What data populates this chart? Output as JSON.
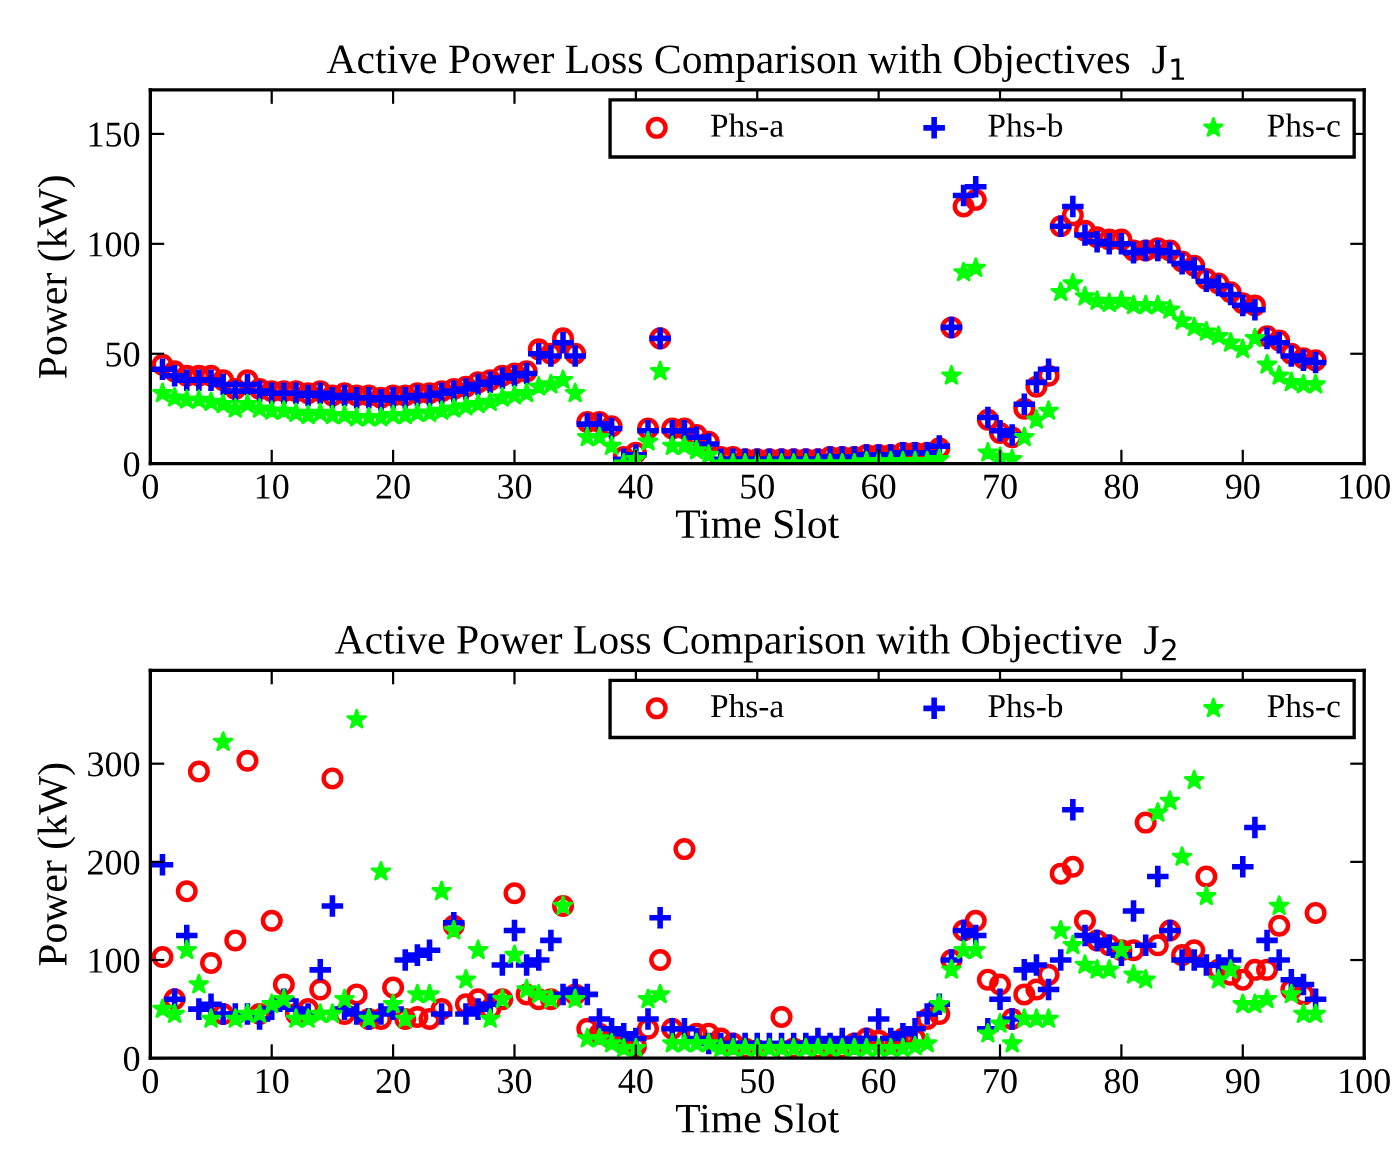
{
  "chart_data": [
    {
      "type": "scatter",
      "title": "Active Power Loss Comparison with Objectives  J$_{1}$",
      "xlabel": "Time Slot",
      "ylabel": "Power (kW)",
      "x": [
        1,
        2,
        3,
        4,
        5,
        6,
        7,
        8,
        9,
        10,
        11,
        12,
        13,
        14,
        15,
        16,
        17,
        18,
        19,
        20,
        21,
        22,
        23,
        24,
        25,
        26,
        27,
        28,
        29,
        30,
        31,
        32,
        33,
        34,
        35,
        36,
        37,
        38,
        39,
        40,
        41,
        42,
        43,
        44,
        45,
        46,
        47,
        48,
        49,
        50,
        51,
        52,
        53,
        54,
        55,
        56,
        57,
        58,
        59,
        60,
        61,
        62,
        63,
        64,
        65,
        66,
        67,
        68,
        69,
        70,
        71,
        72,
        73,
        74,
        75,
        76,
        77,
        78,
        79,
        80,
        81,
        82,
        83,
        84,
        85,
        86,
        87,
        88,
        89,
        90,
        91,
        92,
        93,
        94,
        95,
        96
      ],
      "series": [
        {
          "name": "Phs-a",
          "color": "#ff0000",
          "marker": "circle",
          "values": [
            45,
            42,
            40,
            40,
            40,
            38,
            34,
            38,
            34,
            33,
            33,
            33,
            32,
            33,
            31,
            32,
            31,
            31,
            30,
            31,
            31,
            32,
            32,
            33,
            34,
            35,
            37,
            38,
            40,
            41,
            42,
            52,
            50,
            57,
            50,
            19,
            19,
            17,
            3,
            5,
            16,
            57,
            16,
            16,
            13,
            10,
            3,
            3,
            2,
            2,
            2,
            2,
            2,
            2,
            2,
            3,
            3,
            3,
            4,
            4,
            4,
            5,
            5,
            5,
            7,
            62,
            117,
            120,
            20,
            14,
            12,
            25,
            35,
            40,
            108,
            113,
            106,
            103,
            102,
            102,
            97,
            97,
            98,
            97,
            92,
            90,
            84,
            82,
            78,
            73,
            72,
            58,
            56,
            50,
            48,
            47
          ]
        },
        {
          "name": "Phs-b",
          "color": "#0000ff",
          "marker": "cross",
          "values": [
            43,
            40,
            38,
            38,
            38,
            36,
            33,
            36,
            33,
            32,
            32,
            32,
            31,
            32,
            30,
            31,
            30,
            30,
            29,
            30,
            30,
            31,
            31,
            32,
            33,
            34,
            36,
            37,
            39,
            40,
            41,
            50,
            49,
            55,
            49,
            18,
            18,
            16,
            2,
            4,
            15,
            57,
            15,
            15,
            12,
            9,
            2,
            2,
            2,
            2,
            2,
            2,
            2,
            2,
            2,
            3,
            3,
            3,
            4,
            4,
            4,
            5,
            5,
            5,
            8,
            62,
            122,
            126,
            21,
            15,
            13,
            27,
            37,
            43,
            108,
            117,
            104,
            101,
            100,
            100,
            96,
            97,
            97,
            96,
            91,
            89,
            83,
            81,
            77,
            72,
            70,
            57,
            55,
            49,
            47,
            46
          ]
        },
        {
          "name": "Phs-c",
          "color": "#00ff00",
          "marker": "star",
          "values": [
            32,
            30,
            29,
            29,
            28,
            27,
            25,
            27,
            25,
            24,
            24,
            23,
            22,
            23,
            22,
            22,
            21,
            21,
            21,
            22,
            22,
            23,
            23,
            24,
            25,
            26,
            27,
            28,
            30,
            31,
            32,
            35,
            36,
            38,
            32,
            12,
            12,
            8,
            0,
            2,
            10,
            42,
            8,
            8,
            6,
            4,
            0,
            0,
            0,
            0,
            0,
            0,
            0,
            0,
            0,
            0,
            0,
            0,
            1,
            1,
            1,
            1,
            1,
            1,
            2,
            40,
            87,
            89,
            5,
            3,
            2,
            12,
            20,
            24,
            78,
            82,
            76,
            74,
            73,
            74,
            72,
            72,
            72,
            70,
            65,
            62,
            60,
            58,
            55,
            52,
            57,
            45,
            40,
            37,
            36,
            36
          ]
        }
      ],
      "xlim": [
        0,
        100
      ],
      "xticks": [
        0,
        10,
        20,
        30,
        40,
        50,
        60,
        70,
        80,
        90,
        100
      ],
      "ylim": [
        0,
        170
      ],
      "yticks": [
        0,
        50,
        100,
        150
      ],
      "legend": "top right",
      "grid": false
    },
    {
      "type": "scatter",
      "title": "Active Power Loss Comparison with Objective  J$_{2}$",
      "xlabel": "Time Slot",
      "ylabel": "Power (kW)",
      "x": [
        1,
        2,
        3,
        4,
        5,
        6,
        7,
        8,
        9,
        10,
        11,
        12,
        13,
        14,
        15,
        16,
        17,
        18,
        19,
        20,
        21,
        22,
        23,
        24,
        25,
        26,
        27,
        28,
        29,
        30,
        31,
        32,
        33,
        34,
        35,
        36,
        37,
        38,
        39,
        40,
        41,
        42,
        43,
        44,
        45,
        46,
        47,
        48,
        49,
        50,
        51,
        52,
        53,
        54,
        55,
        56,
        57,
        58,
        59,
        60,
        61,
        62,
        63,
        64,
        65,
        66,
        67,
        68,
        69,
        70,
        71,
        72,
        73,
        74,
        75,
        76,
        77,
        78,
        79,
        80,
        81,
        82,
        83,
        84,
        85,
        86,
        87,
        88,
        89,
        90,
        91,
        92,
        93,
        94,
        95,
        96
      ],
      "series": [
        {
          "name": "Phs-a",
          "color": "#ff0000",
          "marker": "circle",
          "values": [
            103,
            60,
            170,
            292,
            97,
            45,
            120,
            303,
            45,
            140,
            75,
            45,
            50,
            70,
            285,
            45,
            65,
            40,
            40,
            72,
            40,
            42,
            40,
            50,
            135,
            55,
            60,
            50,
            60,
            168,
            65,
            60,
            60,
            155,
            65,
            30,
            25,
            20,
            15,
            12,
            30,
            100,
            30,
            213,
            25,
            25,
            20,
            15,
            10,
            8,
            5,
            42,
            10,
            8,
            10,
            12,
            10,
            15,
            20,
            18,
            15,
            20,
            20,
            40,
            45,
            100,
            130,
            140,
            80,
            75,
            40,
            65,
            70,
            85,
            188,
            195,
            140,
            120,
            115,
            110,
            110,
            240,
            115,
            130,
            105,
            110,
            185,
            90,
            85,
            80,
            90,
            90,
            135,
            70,
            65,
            148
          ]
        },
        {
          "name": "Phs-b",
          "color": "#0000ff",
          "marker": "cross",
          "values": [
            197,
            60,
            125,
            50,
            55,
            45,
            45,
            45,
            40,
            50,
            60,
            50,
            45,
            90,
            155,
            50,
            45,
            40,
            45,
            50,
            100,
            105,
            110,
            45,
            138,
            45,
            50,
            55,
            95,
            130,
            95,
            100,
            120,
            65,
            70,
            65,
            40,
            30,
            25,
            20,
            40,
            143,
            30,
            30,
            20,
            15,
            15,
            15,
            15,
            15,
            15,
            15,
            15,
            15,
            20,
            15,
            20,
            15,
            20,
            40,
            20,
            25,
            30,
            45,
            55,
            100,
            130,
            125,
            30,
            60,
            40,
            90,
            95,
            70,
            100,
            253,
            125,
            120,
            115,
            105,
            150,
            115,
            185,
            130,
            100,
            100,
            95,
            95,
            100,
            195,
            235,
            120,
            100,
            80,
            75,
            60
          ]
        },
        {
          "name": "Phs-c",
          "color": "#00ff00",
          "marker": "star",
          "values": [
            50,
            45,
            110,
            75,
            40,
            322,
            40,
            45,
            45,
            55,
            60,
            40,
            40,
            45,
            45,
            60,
            345,
            40,
            190,
            55,
            40,
            65,
            65,
            170,
            130,
            80,
            110,
            40,
            60,
            105,
            70,
            65,
            60,
            155,
            60,
            20,
            20,
            15,
            10,
            10,
            60,
            65,
            15,
            15,
            15,
            15,
            10,
            10,
            10,
            10,
            10,
            10,
            10,
            10,
            10,
            10,
            10,
            10,
            10,
            10,
            10,
            10,
            12,
            15,
            55,
            90,
            110,
            110,
            25,
            35,
            15,
            40,
            40,
            40,
            130,
            115,
            95,
            90,
            90,
            110,
            85,
            80,
            250,
            262,
            205,
            283,
            165,
            80,
            90,
            55,
            55,
            60,
            155,
            65,
            45,
            45
          ]
        }
      ],
      "xlim": [
        0,
        100
      ],
      "xticks": [
        0,
        10,
        20,
        30,
        40,
        50,
        60,
        70,
        80,
        90,
        100
      ],
      "ylim": [
        0,
        395
      ],
      "yticks": [
        0,
        100,
        200,
        300
      ],
      "legend": "top right",
      "grid": false
    }
  ]
}
